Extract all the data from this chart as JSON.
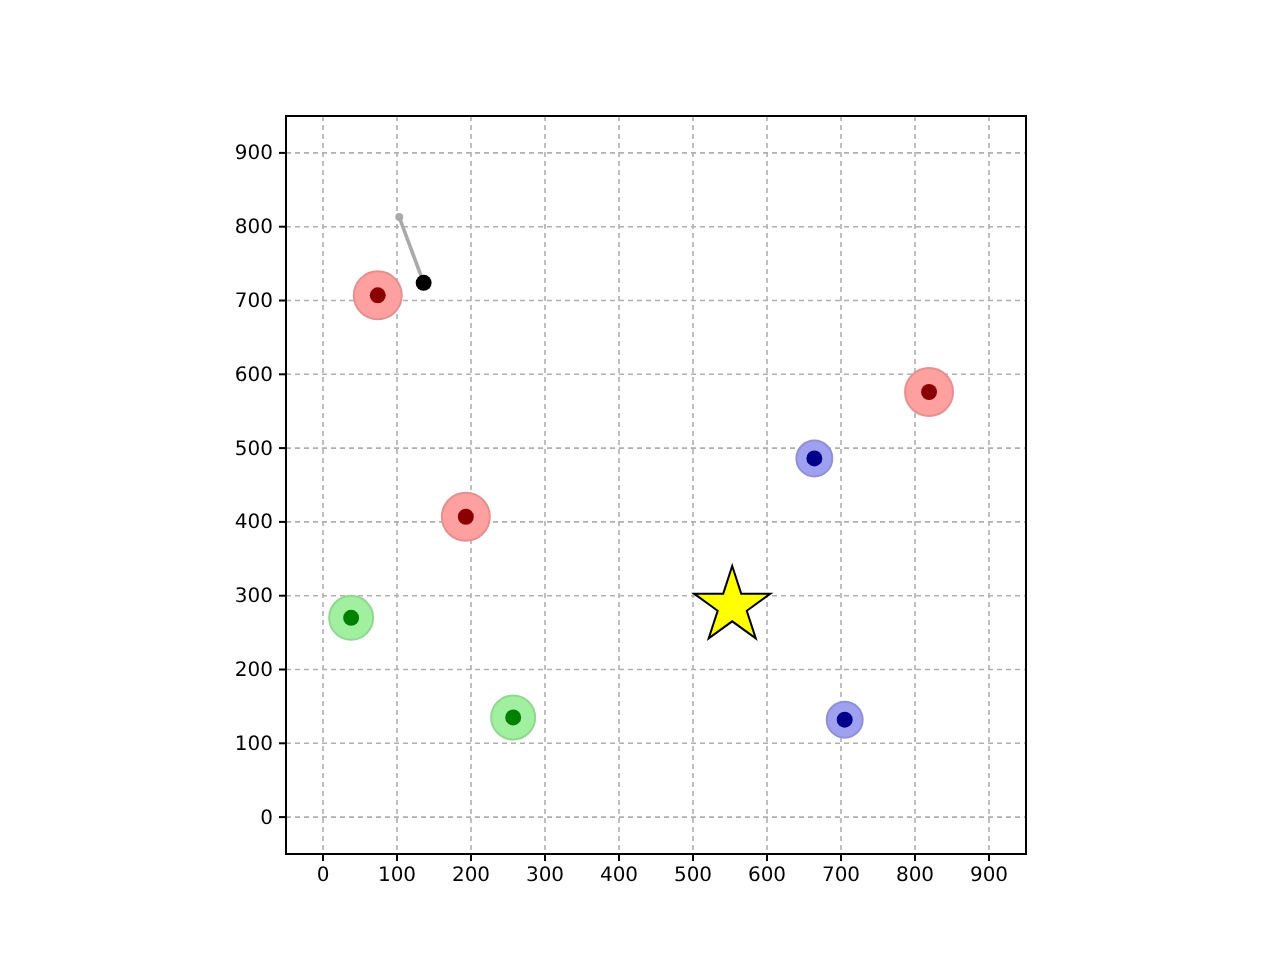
{
  "chart_data": {
    "type": "scatter",
    "xlim": [
      -50,
      950
    ],
    "ylim": [
      -50,
      950
    ],
    "xticks": [
      0,
      100,
      200,
      300,
      400,
      500,
      600,
      700,
      800,
      900
    ],
    "yticks": [
      0,
      100,
      200,
      300,
      400,
      500,
      600,
      700,
      800,
      900
    ],
    "grid": true,
    "series": [
      {
        "type": "bubble",
        "color": "#ffa0a0",
        "x": [
          74,
          193,
          819
        ],
        "values": [
          707,
          407,
          576
        ],
        "sizes": [
          1,
          1,
          1
        ]
      },
      {
        "type": "bubble",
        "color": "#a0f0a0",
        "x": [
          38,
          257
        ],
        "values": [
          270,
          135
        ],
        "sizes": [
          0.84,
          0.84
        ]
      },
      {
        "type": "bubble",
        "color": "#a0a0f0",
        "x": [
          664,
          705
        ],
        "values": [
          486,
          132
        ],
        "sizes": [
          0.56,
          0.56
        ]
      },
      {
        "type": "scatter",
        "marker": "circle",
        "color": "#8b0000",
        "x": [
          74,
          193,
          819
        ],
        "values": [
          707,
          407,
          576
        ]
      },
      {
        "type": "scatter",
        "marker": "circle",
        "color": "#008000",
        "x": [
          38,
          257
        ],
        "values": [
          270,
          135
        ]
      },
      {
        "type": "scatter",
        "marker": "circle",
        "color": "#00008b",
        "x": [
          664,
          705
        ],
        "values": [
          486,
          132
        ]
      },
      {
        "type": "line",
        "marker": "circle",
        "color": "#aaaaaa",
        "x": [
          103,
          136
        ],
        "values": [
          813,
          724
        ]
      },
      {
        "type": "scatter",
        "marker": "circle",
        "color": "#000000",
        "x": [
          136
        ],
        "values": [
          724
        ]
      },
      {
        "type": "scatter",
        "marker": "star",
        "color": "#ffff00",
        "x": [
          553
        ],
        "values": [
          286
        ]
      }
    ]
  }
}
